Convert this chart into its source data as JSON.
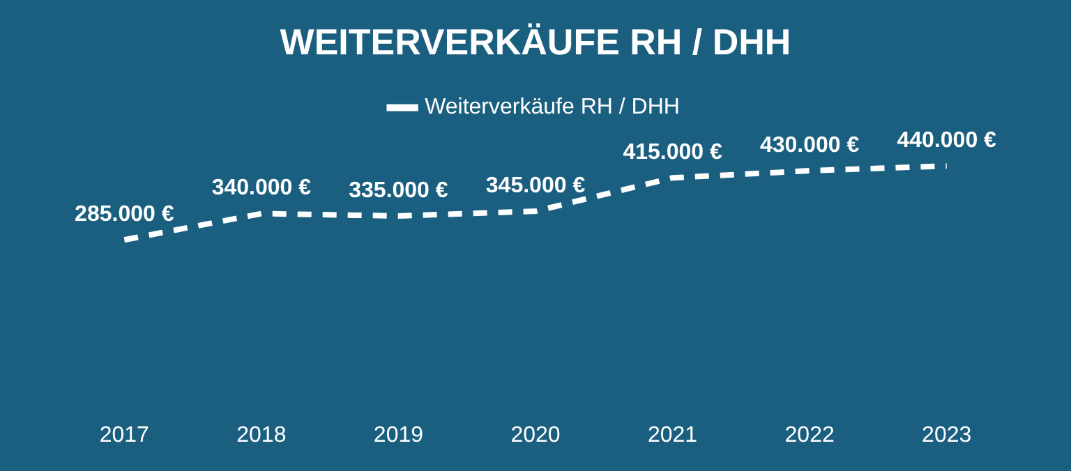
{
  "chart_data": {
    "type": "line",
    "title": "WEITERVERKÄUFE RH / DHH",
    "categories": [
      "2017",
      "2018",
      "2019",
      "2020",
      "2021",
      "2022",
      "2023"
    ],
    "series": [
      {
        "name": "Weiterverkäufe RH / DHH",
        "color": "#ffffff",
        "values": [
          285000,
          340000,
          335000,
          345000,
          415000,
          430000,
          440000
        ],
        "value_labels": [
          "285.000 €",
          "340.000 €",
          "335.000 €",
          "345.000 €",
          "415.000 €",
          "430.000 €",
          "440.000 €"
        ]
      }
    ],
    "legend": "top",
    "grid": false,
    "line_style": "dashed"
  }
}
